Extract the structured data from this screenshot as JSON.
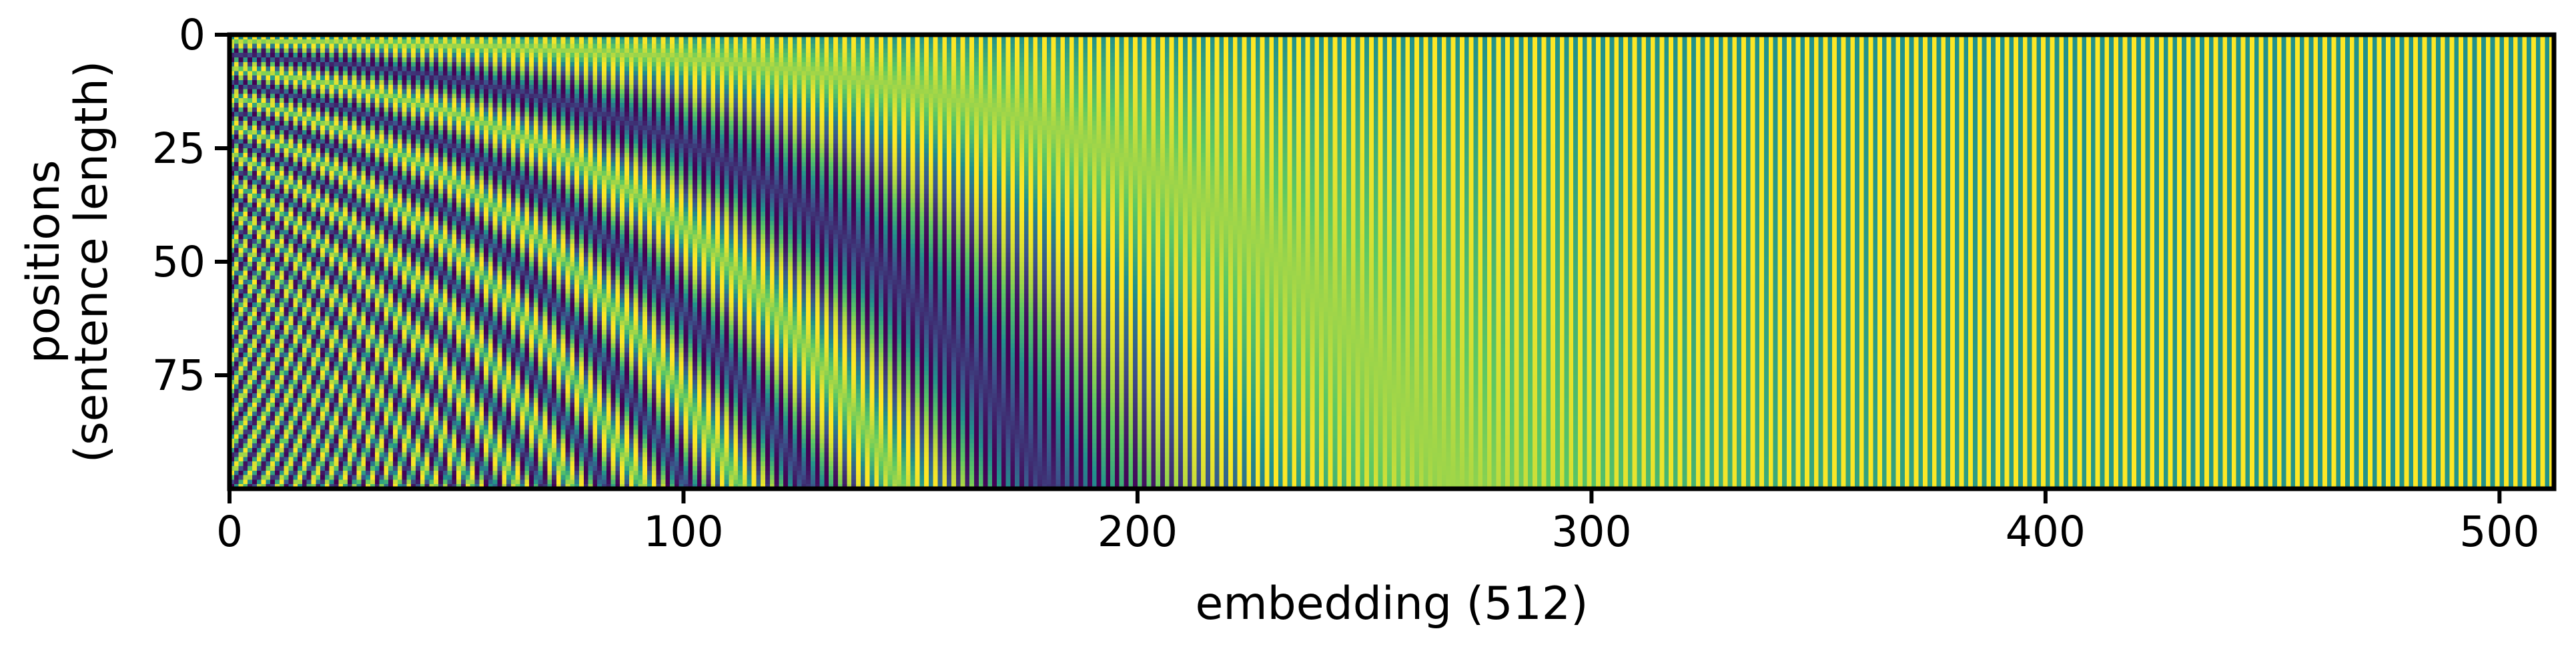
{
  "chart_data": {
    "type": "heatmap",
    "title": "",
    "description_visible": false,
    "xlabel": "embedding (512)",
    "ylabel_lines": [
      "positions",
      "(sentence length)"
    ],
    "rows": 100,
    "cols": 512,
    "xlim": [
      0,
      512
    ],
    "ylim": [
      0,
      100
    ],
    "y_inverted": true,
    "x_ticks": [
      0,
      100,
      200,
      300,
      400,
      500
    ],
    "y_ticks": [
      0,
      25,
      50,
      75
    ],
    "value_function": "sinusoidal positional encoding: even columns sin(pos / 10000^(i/512)), odd columns cos(pos / 10000^((i-1)/512))",
    "value_range": [
      -1,
      1
    ],
    "colormap": "viridis",
    "colormap_stops": [
      "#440154",
      "#3b528b",
      "#21918c",
      "#5ec962",
      "#fde725"
    ],
    "grid": false,
    "legend": "none"
  }
}
